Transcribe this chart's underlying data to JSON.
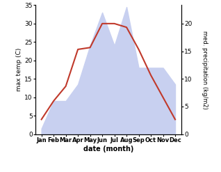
{
  "months": [
    "Jan",
    "Feb",
    "Mar",
    "Apr",
    "May",
    "Jun",
    "Jul",
    "Aug",
    "Sep",
    "Oct",
    "Nov",
    "Dec"
  ],
  "temperature": [
    4,
    9,
    13,
    23,
    23.5,
    30,
    30,
    29,
    23,
    16,
    10,
    4
  ],
  "precipitation": [
    1,
    6,
    6,
    9,
    16,
    22,
    16,
    23,
    12,
    12,
    12,
    9
  ],
  "temp_color": "#c0392b",
  "precip_fill_color": "#c8d0f0",
  "temp_ylim": [
    0,
    35
  ],
  "precip_ylim": [
    0,
    23.33
  ],
  "temp_yticks": [
    0,
    5,
    10,
    15,
    20,
    25,
    30,
    35
  ],
  "precip_yticks": [
    0,
    5,
    10,
    15,
    20
  ],
  "ylabel_left": "max temp (C)",
  "ylabel_right": "med. precipitation (kg/m2)",
  "xlabel": "date (month)"
}
